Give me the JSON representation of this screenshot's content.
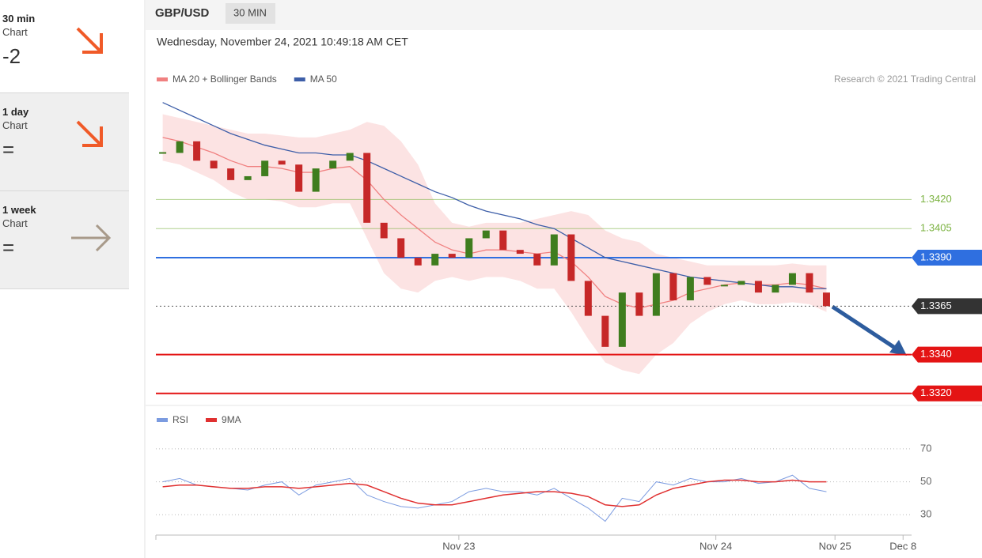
{
  "sidebar": [
    {
      "period": "30 min",
      "label": "Chart",
      "value": -2
    },
    {
      "period": "1 day",
      "label": "Chart",
      "value": "="
    },
    {
      "period": "1 week",
      "label": "Chart",
      "value": "="
    }
  ],
  "header": {
    "symbol": "GBP/USD",
    "interval": "30 MIN",
    "timestamp": "Wednesday, November 24, 2021 10:49:18 AM CET",
    "credit": "Research © 2021 Trading Central"
  },
  "chart_data": [
    {
      "type": "candlestick",
      "close": [
        1.3444,
        1.345,
        1.344,
        1.3436,
        1.343,
        1.3432,
        1.344,
        1.3438,
        1.3424,
        1.3436,
        1.344,
        1.3444,
        1.3408,
        1.34,
        1.339,
        1.3386,
        1.3392,
        1.339,
        1.34,
        1.3404,
        1.3394,
        1.3392,
        1.3386,
        1.3402,
        1.3378,
        1.336,
        1.3344,
        1.3372,
        1.336,
        1.3382,
        1.3368,
        1.338,
        1.3376,
        1.3376,
        1.3378,
        1.3372,
        1.3376,
        1.3382,
        1.3372,
        1.3365
      ],
      "series": [
        {
          "name": "MA 20 + Bollinger Bands",
          "color": "#f08080",
          "values": [
            1.3452,
            1.345,
            1.3447,
            1.3444,
            1.344,
            1.3437,
            1.3437,
            1.3436,
            1.3434,
            1.3434,
            1.3436,
            1.3437,
            1.343,
            1.342,
            1.3412,
            1.3405,
            1.3398,
            1.3394,
            1.3392,
            1.3394,
            1.3394,
            1.3393,
            1.3392,
            1.3393,
            1.3388,
            1.338,
            1.337,
            1.3366,
            1.3364,
            1.3366,
            1.3368,
            1.3372,
            1.3374,
            1.3376,
            1.3377,
            1.3376,
            1.3376,
            1.3377,
            1.3376,
            1.3374
          ],
          "upper": [
            1.3464,
            1.3462,
            1.346,
            1.3458,
            1.3456,
            1.3454,
            1.3454,
            1.3453,
            1.3452,
            1.3452,
            1.3454,
            1.3456,
            1.346,
            1.3458,
            1.345,
            1.3438,
            1.3418,
            1.3408,
            1.3406,
            1.3408,
            1.3408,
            1.3408,
            1.341,
            1.3412,
            1.3414,
            1.3412,
            1.3404,
            1.34,
            1.3398,
            1.3392,
            1.339,
            1.3388,
            1.3386,
            1.3386,
            1.3386,
            1.3386,
            1.3386,
            1.3387,
            1.3386,
            1.3386
          ],
          "lower": [
            1.344,
            1.3438,
            1.3434,
            1.343,
            1.3424,
            1.342,
            1.342,
            1.3419,
            1.3416,
            1.3416,
            1.3418,
            1.3418,
            1.34,
            1.3382,
            1.3374,
            1.3372,
            1.3378,
            1.338,
            1.3378,
            1.338,
            1.338,
            1.3378,
            1.3374,
            1.3374,
            1.3362,
            1.3348,
            1.3336,
            1.3332,
            1.333,
            1.334,
            1.3346,
            1.3356,
            1.3362,
            1.3366,
            1.3368,
            1.3366,
            1.3366,
            1.3367,
            1.3366,
            1.3362
          ]
        },
        {
          "name": "MA 50",
          "color": "#3d5ea8",
          "values": [
            1.347,
            1.3466,
            1.3462,
            1.3458,
            1.3454,
            1.3451,
            1.3448,
            1.3446,
            1.3444,
            1.3444,
            1.3443,
            1.3443,
            1.344,
            1.3436,
            1.3432,
            1.3428,
            1.3424,
            1.3421,
            1.3417,
            1.3414,
            1.3412,
            1.341,
            1.3407,
            1.3405,
            1.34,
            1.3395,
            1.339,
            1.3388,
            1.3386,
            1.3384,
            1.3382,
            1.338,
            1.3379,
            1.3378,
            1.3377,
            1.3376,
            1.3375,
            1.3375,
            1.3374,
            1.3374
          ]
        }
      ],
      "levels": [
        {
          "value": 1.342,
          "label": "1.3420",
          "color": "#7cb342",
          "boxed": false
        },
        {
          "value": 1.3405,
          "label": "1.3405",
          "color": "#7cb342",
          "boxed": false
        },
        {
          "value": 1.339,
          "label": "1.3390",
          "color": "#2f6fe0",
          "boxed": true
        },
        {
          "value": 1.3365,
          "label": "1.3365",
          "color": "#333333",
          "boxed": true
        },
        {
          "value": 1.334,
          "label": "1.3340",
          "color": "#e41414",
          "boxed": true
        },
        {
          "value": 1.332,
          "label": "1.3320",
          "color": "#e41414",
          "boxed": true
        }
      ],
      "up_color": "#3f7d1e",
      "down_color": "#c62828",
      "ylim": [
        1.3315,
        1.3476
      ],
      "xlim": [
        -0.4,
        44
      ],
      "xticks": [
        {
          "value": 17.4,
          "label": "Nov 23"
        },
        {
          "value": 32.5,
          "label": "Nov 24"
        },
        {
          "value": 39.5,
          "label": "Nov 25"
        },
        {
          "value": 43.5,
          "label": "Dec 8"
        }
      ]
    },
    {
      "type": "line",
      "series": [
        {
          "name": "RSI",
          "color": "#7b9be0",
          "values": [
            50,
            52,
            48,
            47,
            46,
            45,
            48,
            50,
            42,
            48,
            50,
            52,
            42,
            38,
            35,
            34,
            36,
            38,
            44,
            46,
            44,
            44,
            42,
            46,
            40,
            34,
            26,
            40,
            38,
            50,
            48,
            52,
            50,
            50,
            52,
            49,
            50,
            54,
            46,
            44
          ]
        },
        {
          "name": "9MA",
          "color": "#e03030",
          "values": [
            47,
            48,
            48,
            47,
            46,
            46,
            47,
            47,
            46,
            47,
            48,
            49,
            48,
            44,
            40,
            37,
            36,
            36,
            38,
            40,
            42,
            43,
            44,
            44,
            43,
            41,
            36,
            35,
            36,
            42,
            46,
            48,
            50,
            51,
            51,
            50,
            50,
            51,
            50,
            50
          ]
        }
      ],
      "ylim": [
        21,
        81
      ],
      "yticks": [
        30,
        50,
        70
      ],
      "grid": true
    }
  ]
}
